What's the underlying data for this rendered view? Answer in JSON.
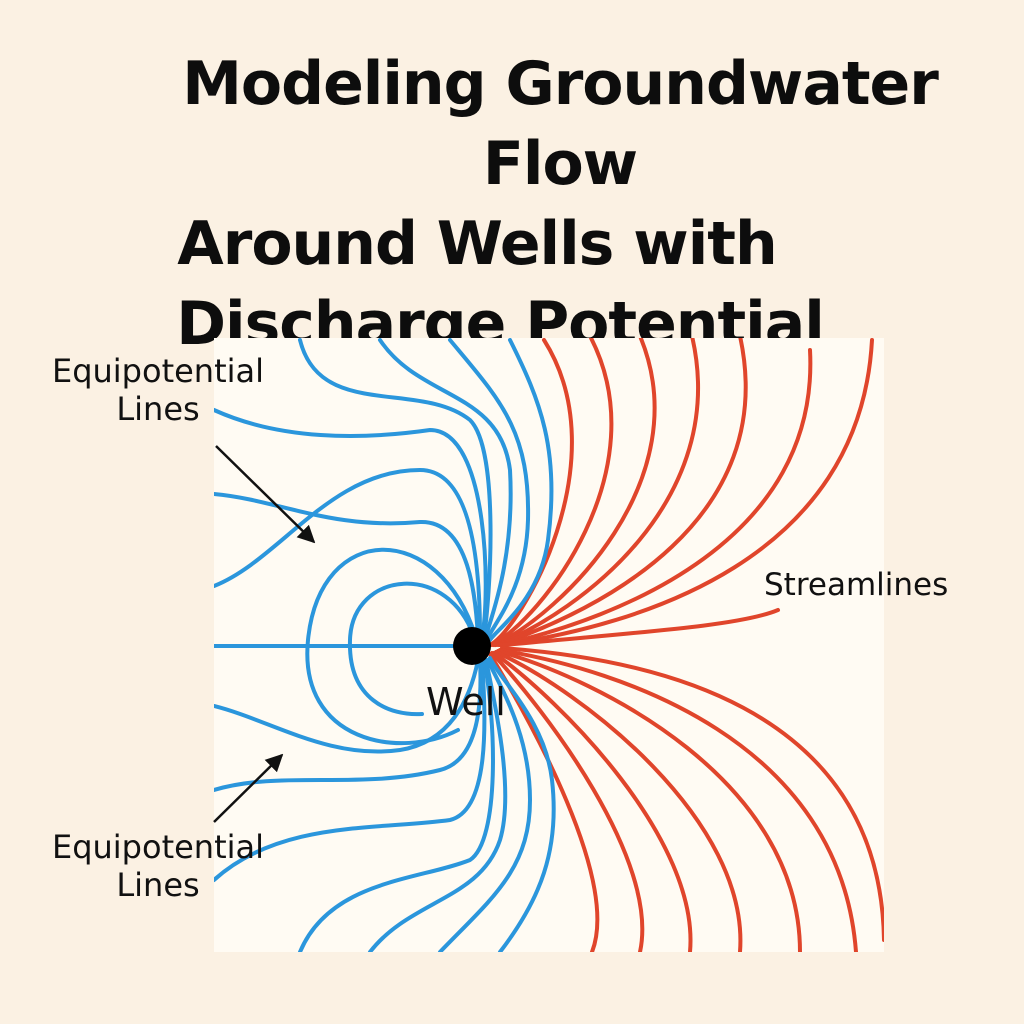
{
  "title": {
    "line1": "Modeling Groundwater Flow",
    "line2": "Around Wells with",
    "line3": "Discharge Potential"
  },
  "labels": {
    "equipotential_top": "Equipotential\nLines",
    "equipotential_bottom": "Equipotential\nLines",
    "streamlines": "Streamlines",
    "well": "Well"
  },
  "colors": {
    "background": "#fbf1e3",
    "panel": "#fffbf3",
    "equipotential": "#2b96dc",
    "streamline": "#e0452b",
    "well": "#000000"
  }
}
